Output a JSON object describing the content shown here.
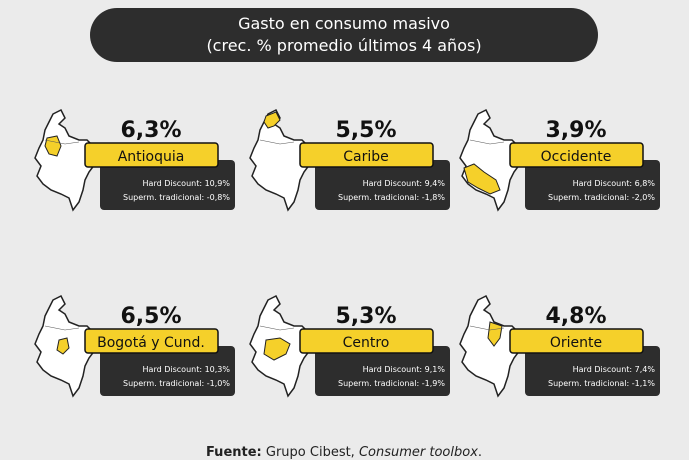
{
  "title": {
    "line1": "Gasto en consumo masivo",
    "line2": "(crec. % promedio últimos 4 años)"
  },
  "regions": [
    {
      "growth": "6,3%",
      "name": "Antioquia",
      "hard_discount": "Hard Discount: 10,9%",
      "supermercado": "Superm. tradicional: -0,8%"
    },
    {
      "growth": "5,5%",
      "name": "Caribe",
      "hard_discount": "Hard Discount: 9,4%",
      "supermercado": "Superm. tradicional: -1,8%"
    },
    {
      "growth": "3,9%",
      "name": "Occidente",
      "hard_discount": "Hard Discount: 6,8%",
      "supermercado": "Superm. tradicional: -2,0%"
    },
    {
      "growth": "6,5%",
      "name": "Bogotá y Cund.",
      "hard_discount": "Hard Discount: 10,3%",
      "supermercado": "Superm. tradicional: -1,0%"
    },
    {
      "growth": "5,3%",
      "name": "Centro",
      "hard_discount": "Hard Discount: 9,1%",
      "supermercado": "Superm. tradicional: -1,9%"
    },
    {
      "growth": "4,8%",
      "name": "Oriente",
      "hard_discount": "Hard Discount: 7,4%",
      "supermercado": "Superm. tradicional: -1,1%"
    }
  ],
  "source": {
    "label": "Fuente:",
    "text": " Grupo Cibest, ",
    "italic": "Consumer toolbox",
    "end": "."
  }
}
